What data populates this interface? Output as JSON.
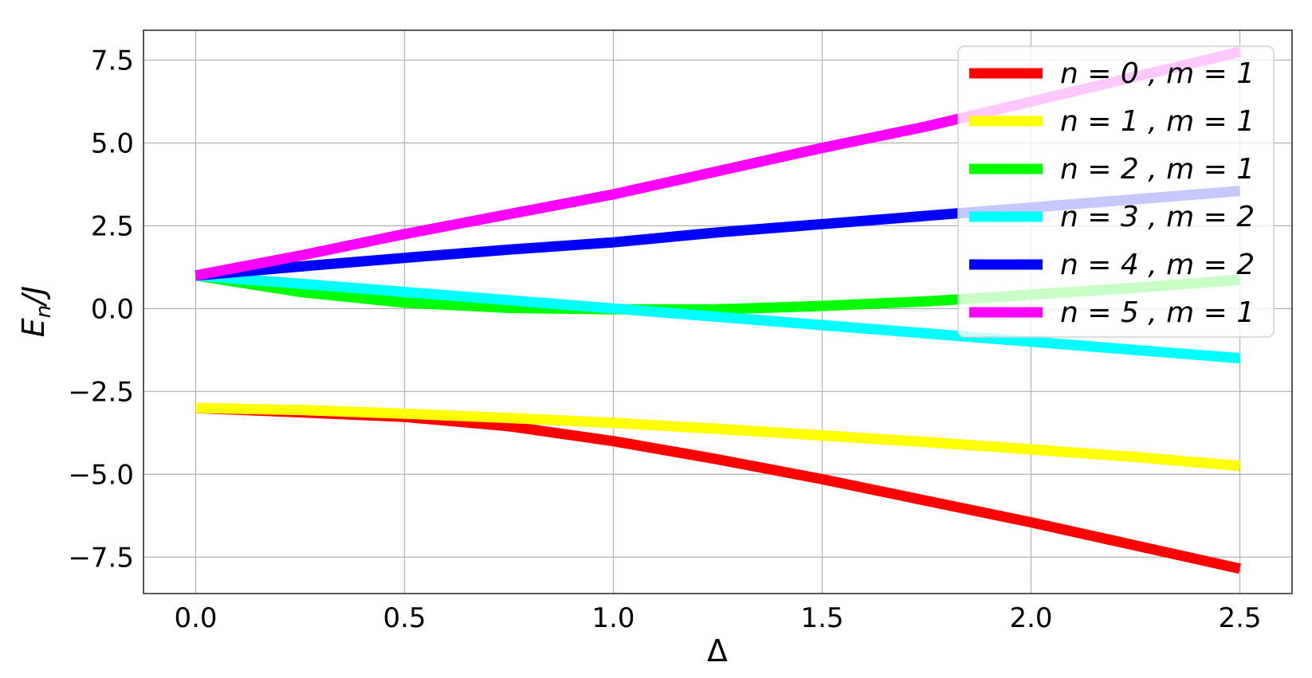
{
  "chart_data": {
    "type": "line",
    "xlabel": "Δ",
    "ylabel_main": "E",
    "ylabel_sub": "n",
    "ylabel_tail": "/J",
    "xlim": [
      -0.125,
      2.625
    ],
    "ylim": [
      -8.6,
      8.4
    ],
    "xticks": [
      0.0,
      0.5,
      1.0,
      1.5,
      2.0,
      2.5
    ],
    "xtick_labels": [
      "0.0",
      "0.5",
      "1.0",
      "1.5",
      "2.0",
      "2.5"
    ],
    "yticks": [
      7.5,
      5.0,
      2.5,
      0.0,
      -2.5,
      -5.0,
      -7.5
    ],
    "ytick_labels": [
      "7.5",
      "5.0",
      "2.5",
      "0.0",
      "−2.5",
      "−5.0",
      "−7.5"
    ],
    "grid": true,
    "legend_position": "top-right",
    "x": [
      0.0,
      0.25,
      0.5,
      0.75,
      1.0,
      1.25,
      1.5,
      1.75,
      2.0,
      2.25,
      2.5
    ],
    "series": [
      {
        "name": "n = 0 , m = 1",
        "color": "#ff0000",
        "values": [
          -3.0,
          -3.13,
          -3.27,
          -3.55,
          -4.0,
          -4.55,
          -5.15,
          -5.8,
          -6.45,
          -7.15,
          -7.85
        ]
      },
      {
        "name": "n = 1 , m = 1",
        "color": "#ffff00",
        "values": [
          -3.0,
          -3.06,
          -3.17,
          -3.3,
          -3.45,
          -3.63,
          -3.83,
          -4.03,
          -4.25,
          -4.48,
          -4.75
        ]
      },
      {
        "name": "n = 2 , m = 1",
        "color": "#00ff00",
        "values": [
          1.0,
          0.5,
          0.18,
          0.02,
          -0.02,
          -0.02,
          0.08,
          0.22,
          0.42,
          0.63,
          0.87
        ]
      },
      {
        "name": "n = 3 , m = 2",
        "color": "#00ffff",
        "values": [
          1.0,
          0.75,
          0.5,
          0.25,
          0.0,
          -0.25,
          -0.5,
          -0.75,
          -1.0,
          -1.25,
          -1.5
        ]
      },
      {
        "name": "n = 4 , m = 2",
        "color": "#0000ff",
        "values": [
          1.0,
          1.27,
          1.53,
          1.78,
          2.0,
          2.3,
          2.55,
          2.8,
          3.05,
          3.3,
          3.55
        ]
      },
      {
        "name": "n = 5 , m = 1",
        "color": "#ff00ff",
        "values": [
          1.0,
          1.6,
          2.25,
          2.85,
          3.45,
          4.15,
          4.85,
          5.5,
          6.25,
          7.0,
          7.75
        ]
      }
    ]
  }
}
